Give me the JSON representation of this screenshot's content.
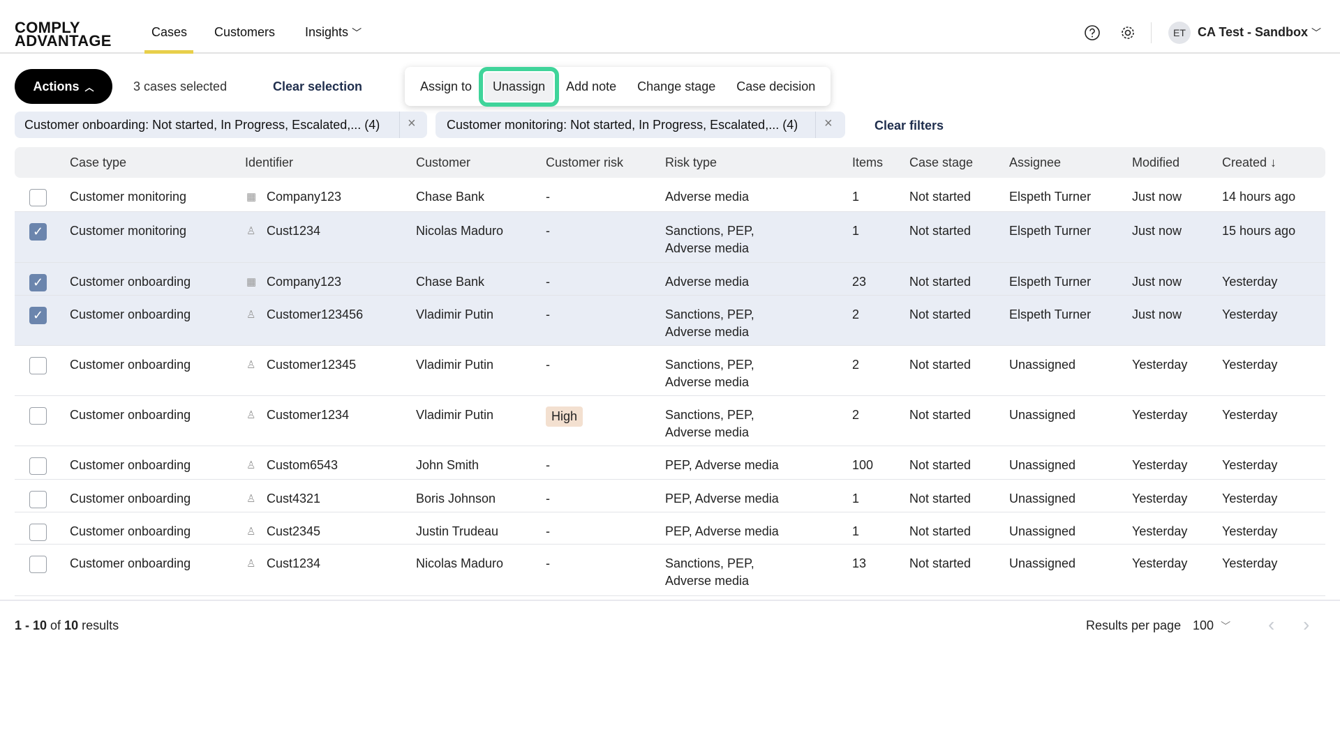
{
  "header": {
    "logo_line1": "COMPLY",
    "logo_line2": "ADVANTAGE",
    "nav": [
      "Cases",
      "Customers",
      "Insights"
    ],
    "active_nav": "Cases",
    "avatar_initials": "ET",
    "account": "CA Test - Sandbox",
    "accent": "#e8cf4a"
  },
  "toolbar": {
    "actions_label": "Actions",
    "selected_text": "3 cases selected",
    "clear_selection": "Clear selection",
    "clear_filters": "Clear filters"
  },
  "filters": [
    "Customer onboarding: Not started, In Progress, Escalated,... (4)",
    "Customer monitoring: Not started, In Progress, Escalated,... (4)"
  ],
  "menu": {
    "items": [
      "Assign to",
      "Unassign",
      "Add note",
      "Change stage",
      "Case decision"
    ],
    "highlighted": "Unassign",
    "highlight_color": "#3fd49a"
  },
  "table": {
    "columns": [
      "Case type",
      "Identifier",
      "Customer",
      "Customer risk",
      "Risk type",
      "Items",
      "Case stage",
      "Assignee",
      "Modified",
      "Created ↓"
    ],
    "rows": [
      {
        "selected": false,
        "case_type": "Customer monitoring",
        "id_icon": "building-icon",
        "identifier": "Company123",
        "customer": "Chase Bank",
        "risk": "-",
        "risk_type": [
          "Adverse media"
        ],
        "items": "1",
        "stage": "Not started",
        "assignee": "Elspeth Turner",
        "modified": "Just now",
        "created": "14 hours ago"
      },
      {
        "selected": true,
        "case_type": "Customer monitoring",
        "id_icon": "person-icon",
        "identifier": "Cust1234",
        "customer": "Nicolas Maduro",
        "risk": "-",
        "risk_type": [
          "Sanctions, PEP,",
          "Adverse media"
        ],
        "items": "1",
        "stage": "Not started",
        "assignee": "Elspeth Turner",
        "modified": "Just now",
        "created": "15 hours ago"
      },
      {
        "selected": true,
        "case_type": "Customer onboarding",
        "id_icon": "building-icon",
        "identifier": "Company123",
        "customer": "Chase Bank",
        "risk": "-",
        "risk_type": [
          "Adverse media"
        ],
        "items": "23",
        "stage": "Not started",
        "assignee": "Elspeth Turner",
        "modified": "Just now",
        "created": "Yesterday"
      },
      {
        "selected": true,
        "case_type": "Customer onboarding",
        "id_icon": "person-icon",
        "identifier": "Customer123456",
        "customer": "Vladimir Putin",
        "risk": "-",
        "risk_type": [
          "Sanctions, PEP,",
          "Adverse media"
        ],
        "items": "2",
        "stage": "Not started",
        "assignee": "Elspeth Turner",
        "modified": "Just now",
        "created": "Yesterday"
      },
      {
        "selected": false,
        "case_type": "Customer onboarding",
        "id_icon": "person-icon",
        "identifier": "Customer12345",
        "customer": "Vladimir Putin",
        "risk": "-",
        "risk_type": [
          "Sanctions, PEP,",
          "Adverse media"
        ],
        "items": "2",
        "stage": "Not started",
        "assignee": "Unassigned",
        "modified": "Yesterday",
        "created": "Yesterday"
      },
      {
        "selected": false,
        "case_type": "Customer onboarding",
        "id_icon": "person-icon",
        "identifier": "Customer1234",
        "customer": "Vladimir Putin",
        "risk": "High",
        "risk_type": [
          "Sanctions, PEP,",
          "Adverse media"
        ],
        "items": "2",
        "stage": "Not started",
        "assignee": "Unassigned",
        "modified": "Yesterday",
        "created": "Yesterday"
      },
      {
        "selected": false,
        "case_type": "Customer onboarding",
        "id_icon": "person-icon",
        "identifier": "Custom6543",
        "customer": "John Smith",
        "risk": "-",
        "risk_type": [
          "PEP, Adverse media"
        ],
        "items": "100",
        "stage": "Not started",
        "assignee": "Unassigned",
        "modified": "Yesterday",
        "created": "Yesterday"
      },
      {
        "selected": false,
        "case_type": "Customer onboarding",
        "id_icon": "person-icon",
        "identifier": "Cust4321",
        "customer": "Boris Johnson",
        "risk": "-",
        "risk_type": [
          "PEP, Adverse media"
        ],
        "items": "1",
        "stage": "Not started",
        "assignee": "Unassigned",
        "modified": "Yesterday",
        "created": "Yesterday"
      },
      {
        "selected": false,
        "case_type": "Customer onboarding",
        "id_icon": "person-icon",
        "identifier": "Cust2345",
        "customer": "Justin Trudeau",
        "risk": "-",
        "risk_type": [
          "PEP, Adverse media"
        ],
        "items": "1",
        "stage": "Not started",
        "assignee": "Unassigned",
        "modified": "Yesterday",
        "created": "Yesterday"
      },
      {
        "selected": false,
        "case_type": "Customer onboarding",
        "id_icon": "person-icon",
        "identifier": "Cust1234",
        "customer": "Nicolas Maduro",
        "risk": "-",
        "risk_type": [
          "Sanctions, PEP,",
          "Adverse media"
        ],
        "items": "13",
        "stage": "Not started",
        "assignee": "Unassigned",
        "modified": "Yesterday",
        "created": "Yesterday"
      }
    ]
  },
  "footer": {
    "range": "1 - 10",
    "of": "of",
    "total": "10",
    "results": "results",
    "per_page_label": "Results per page",
    "per_page": "100"
  }
}
